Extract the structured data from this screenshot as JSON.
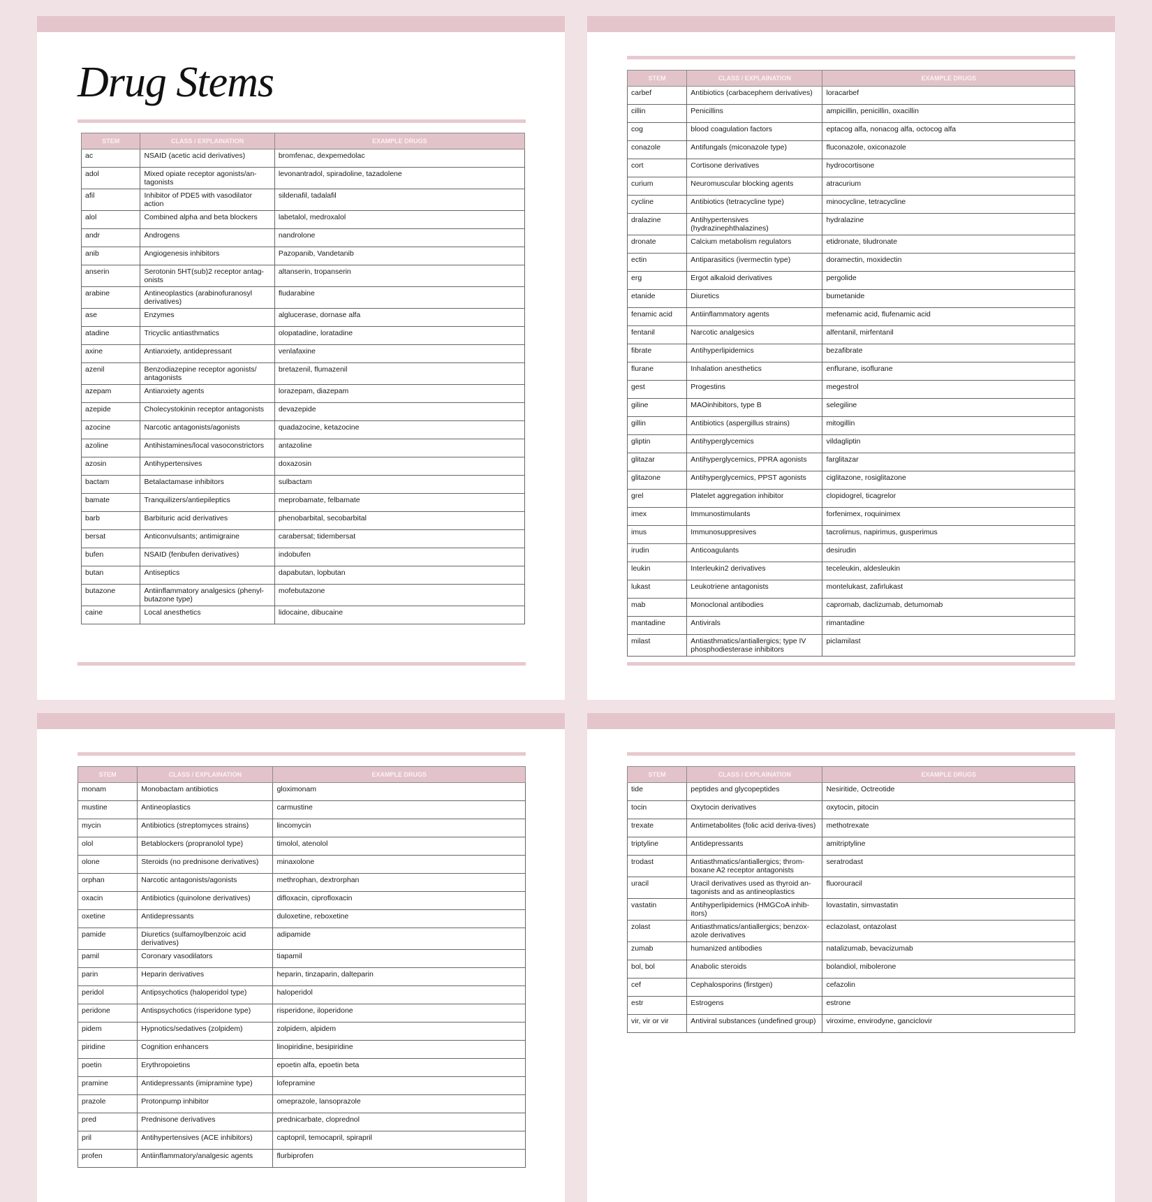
{
  "title": "Drug Stems",
  "headers": [
    "STEM",
    "CLASS / EXPLAINATION",
    "EXAMPLE DRUGS"
  ],
  "colors": {
    "background": "#f1e2e5",
    "accent": "#e5c5cc",
    "header_bg": "#e3c3ca"
  },
  "pages": [
    {
      "rows": [
        [
          "ac",
          "NSAID (acetic acid derivatives)",
          "bromfenac, dexpemedolac"
        ],
        [
          "adol",
          "Mixed opiate receptor agonists/an-tagonists",
          "levonantradol, spiradoline, tazadolene"
        ],
        [
          "afil",
          "Inhibitor of PDE5 with vasodilator action",
          "sildenafil, tadalafil"
        ],
        [
          "alol",
          "Combined alpha and beta blockers",
          "labetalol, medroxalol"
        ],
        [
          "andr",
          "Androgens",
          "nandrolone"
        ],
        [
          "anib",
          "Angiogenesis inhibitors",
          "Pazopanib, Vandetanib"
        ],
        [
          "anserin",
          "Serotonin 5HT(sub)2 receptor antag-onists",
          "altanserin, tropanserin"
        ],
        [
          "arabine",
          "Antineoplastics (arabinofuranosyl derivatives)",
          "fludarabine"
        ],
        [
          "ase",
          "Enzymes",
          "alglucerase, dornase alfa"
        ],
        [
          "atadine",
          "Tricyclic antiasthmatics",
          "olopatadine, loratadine"
        ],
        [
          "axine",
          "Antianxiety, antidepressant",
          "venlafaxine"
        ],
        [
          "azenil",
          "Benzodiazepine receptor agonists/ antagonists",
          "bretazenil, flumazenil"
        ],
        [
          "azepam",
          "Antianxiety agents",
          "lorazepam, diazepam"
        ],
        [
          "azepide",
          "Cholecystokinin receptor antagonists",
          "devazepide"
        ],
        [
          "azocine",
          "Narcotic antagonists/agonists",
          "quadazocine, ketazocine"
        ],
        [
          "azoline",
          "Antihistamines/local vasoconstrictors",
          "antazoline"
        ],
        [
          "azosin",
          "Antihypertensives",
          "doxazosin"
        ],
        [
          "bactam",
          "Betalactamase inhibitors",
          "sulbactam"
        ],
        [
          "bamate",
          "Tranquilizers/antiepileptics",
          "meprobamate, felbamate"
        ],
        [
          "barb",
          "Barbituric acid derivatives",
          "phenobarbital, secobarbital"
        ],
        [
          "bersat",
          "Anticonvulsants; antimigraine",
          "carabersat; tidembersat"
        ],
        [
          "bufen",
          "NSAID (fenbufen derivatives)",
          "indobufen"
        ],
        [
          "butan",
          "Antiseptics",
          "dapabutan, lopbutan"
        ],
        [
          "butazone",
          "Antiinflammatory analgesics (phenyl-butazone type)",
          "mofebutazone"
        ],
        [
          "caine",
          "Local anesthetics",
          "lidocaine, dibucaine"
        ]
      ]
    },
    {
      "rows": [
        [
          "carbef",
          "Antibiotics (carbacephem derivatives)",
          "loracarbef"
        ],
        [
          "cillin",
          "Penicillins",
          "ampicillin, penicillin, oxacillin"
        ],
        [
          "cog",
          "blood coagulation factors",
          "eptacog alfa, nonacog alfa, octocog alfa"
        ],
        [
          "conazole",
          "Antifungals (miconazole type)",
          "fluconazole, oxiconazole"
        ],
        [
          "cort",
          "Cortisone derivatives",
          "hydrocortisone"
        ],
        [
          "curium",
          "Neuromuscular blocking agents",
          "atracurium"
        ],
        [
          "cycline",
          "Antibiotics (tetracycline type)",
          "minocycline, tetracycline"
        ],
        [
          "dralazine",
          "Antihypertensives (hydrazinephthalazines)",
          "hydralazine"
        ],
        [
          "dronate",
          "Calcium metabolism regulators",
          "etidronate, tiludronate"
        ],
        [
          "ectin",
          "Antiparasitics (ivermectin type)",
          "doramectin, moxidectin"
        ],
        [
          "erg",
          "Ergot alkaloid derivatives",
          "pergolide"
        ],
        [
          "etanide",
          "Diuretics",
          "bumetanide"
        ],
        [
          "fenamic acid",
          "Antiinflammatory agents",
          "mefenamic acid, flufenamic acid"
        ],
        [
          "fentanil",
          "Narcotic analgesics",
          "alfentanil, mirfentanil"
        ],
        [
          "fibrate",
          "Antihyperlipidemics",
          "bezafibrate"
        ],
        [
          "flurane",
          "Inhalation anesthetics",
          "enflurane, isoflurane"
        ],
        [
          "gest",
          "Progestins",
          "megestrol"
        ],
        [
          "giline",
          "MAOinhibitors, type B",
          "selegiline"
        ],
        [
          "gillin",
          "Antibiotics (aspergillus strains)",
          "mitogillin"
        ],
        [
          "gliptin",
          "Antihyperglycemics",
          "vildagliptin"
        ],
        [
          "glitazar",
          "Antihyperglycemics, PPRA agonists",
          "farglitazar"
        ],
        [
          "glitazone",
          "Antihyperglycemics, PPST agonists",
          "ciglitazone, rosiglitazone"
        ],
        [
          "grel",
          "Platelet aggregation inhibitor",
          "clopidogrel, ticagrelor"
        ],
        [
          "imex",
          "Immunostimulants",
          "forfenimex, roquinimex"
        ],
        [
          "imus",
          "Immunosuppresives",
          "tacrolimus, napirimus, gusperimus"
        ],
        [
          "irudin",
          "Anticoagulants",
          "desirudin"
        ],
        [
          "leukin",
          "Interleukin2 derivatives",
          "teceleukin, aldesleukin"
        ],
        [
          "lukast",
          "Leukotriene antagonists",
          "montelukast, zafirlukast"
        ],
        [
          "mab",
          "Monoclonal antibodies",
          "capromab, daclizumab, detumomab"
        ],
        [
          "mantadine",
          "Antivirals",
          "rimantadine"
        ],
        [
          "milast",
          "Antiasthmatics/antiallergics; type IV phosphodiesterase inhibitors",
          "piclamilast"
        ]
      ]
    },
    {
      "rows": [
        [
          "monam",
          "Monobactam antibiotics",
          "gloximonam"
        ],
        [
          "mustine",
          "Antineoplastics",
          "carmustine"
        ],
        [
          "mycin",
          "Antibiotics (streptomyces strains)",
          "lincomycin"
        ],
        [
          "olol",
          "Betablockers (propranolol type)",
          "timolol, atenolol"
        ],
        [
          "olone",
          "Steroids (no prednisone derivatives)",
          "minaxolone"
        ],
        [
          "orphan",
          "Narcotic antagonists/agonists",
          "methrophan, dextrorphan"
        ],
        [
          "oxacin",
          "Antibiotics (quinolone derivatives)",
          "difloxacin, ciprofloxacin"
        ],
        [
          "oxetine",
          "Antidepressants",
          "duloxetine, reboxetine"
        ],
        [
          "pamide",
          "Diuretics (sulfamoylbenzoic acid derivatives)",
          "adipamide"
        ],
        [
          "pamil",
          "Coronary vasodilators",
          "tiapamil"
        ],
        [
          "parin",
          "Heparin derivatives",
          "heparin, tinzaparin, dalteparin"
        ],
        [
          "peridol",
          "Antipsychotics (haloperidol type)",
          "haloperidol"
        ],
        [
          "peridone",
          "Antispsychotics (risperidone type)",
          "risperidone, iloperidone"
        ],
        [
          "pidem",
          "Hypnotics/sedatives (zolpidem)",
          "zolpidem, alpidem"
        ],
        [
          "piridine",
          "Cognition enhancers",
          "linopiridine, besipiridine"
        ],
        [
          "poetin",
          "Erythropoietins",
          "epoetin alfa, epoetin beta"
        ],
        [
          "pramine",
          "Antidepressants (imipramine type)",
          "lofepramine"
        ],
        [
          "prazole",
          "Protonpump inhibitor",
          "omeprazole, lansoprazole"
        ],
        [
          "pred",
          "Prednisone derivatives",
          "prednicarbate, cloprednol"
        ],
        [
          "pril",
          "Antihypertensives (ACE inhibitors)",
          "captopril, temocapril, spirapril"
        ],
        [
          "profen",
          "Antiinflammatory/analgesic agents",
          "flurbiprofen"
        ]
      ]
    },
    {
      "rows": [
        [
          "tide",
          "peptides and glycopeptides",
          "Nesiritide, Octreotide"
        ],
        [
          "tocin",
          "Oxytocin derivatives",
          "oxytocin, pitocin"
        ],
        [
          "trexate",
          "Antimetabolites (folic acid deriva-tives)",
          "methotrexate"
        ],
        [
          "triptyline",
          "Antidepressants",
          "amitriptyline"
        ],
        [
          "trodast",
          "Antiasthmatics/antiallergics; throm-boxane A2 receptor antagonists",
          "seratrodast"
        ],
        [
          "uracil",
          "Uracil derivatives used as thyroid an-tagonists and as antineoplastics",
          "fluorouracil"
        ],
        [
          "vastatin",
          "Antihyperlipidemics (HMGCoA inhib-itors)",
          "lovastatin, simvastatin"
        ],
        [
          "zolast",
          "Antiasthmatics/antiallergics; benzox-azole derivatives",
          "eclazolast, ontazolast"
        ],
        [
          "zumab",
          "humanized antibodies",
          "natalizumab, bevacizumab"
        ],
        [
          "bol, bol",
          "Anabolic steroids",
          "bolandiol, mibolerone"
        ],
        [
          "cef",
          "Cephalosporins (firstgen)",
          "cefazolin"
        ],
        [
          "estr",
          "Estrogens",
          "estrone"
        ],
        [
          "vir, vir or vir",
          "Antiviral substances (undefined group)",
          "viroxime, envirodyne, ganciclovir"
        ]
      ]
    }
  ]
}
